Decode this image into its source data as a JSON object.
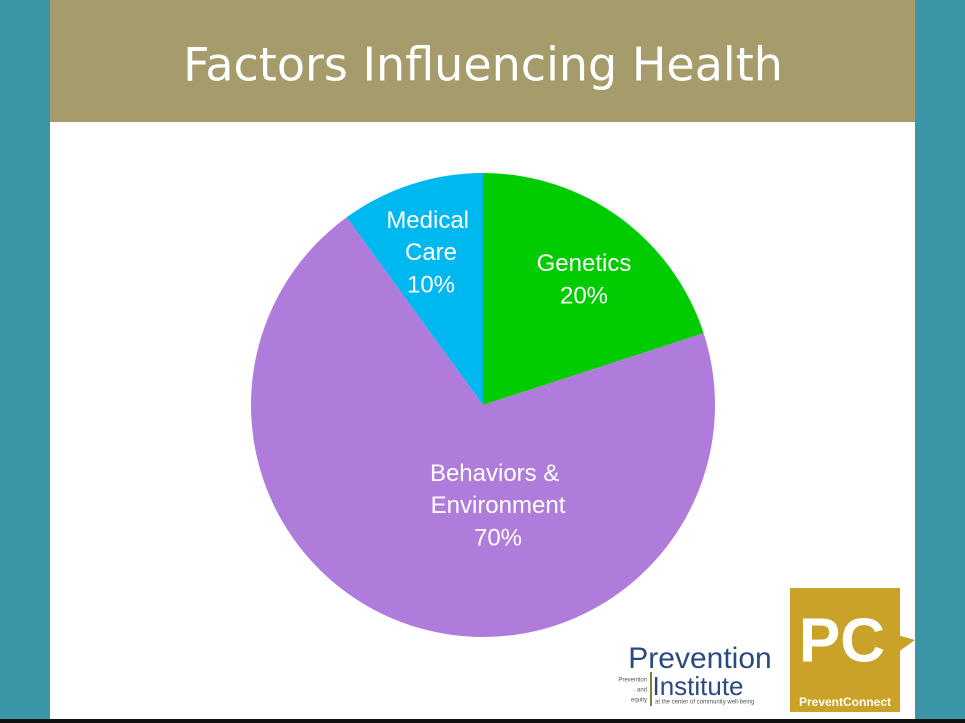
{
  "chart_data": {
    "type": "pie",
    "title": "Factors Influencing Health",
    "categories": [
      "Genetics",
      "Behaviors & Environment",
      "Medical Care"
    ],
    "values": [
      20,
      70,
      10
    ],
    "value_labels": [
      "20%",
      "70%",
      "10%"
    ],
    "colors": [
      "#00cc00",
      "#b07cdb",
      "#00b8f0"
    ]
  },
  "logos": {
    "institute_top": "Prevention",
    "institute_bottom": "Institute",
    "institute_small_1": "Prevention",
    "institute_small_2": "and",
    "institute_small_3": "equity",
    "institute_tagline": "at the center of community well-being",
    "connect_mark": "PC",
    "connect_name": "PreventConnect"
  }
}
